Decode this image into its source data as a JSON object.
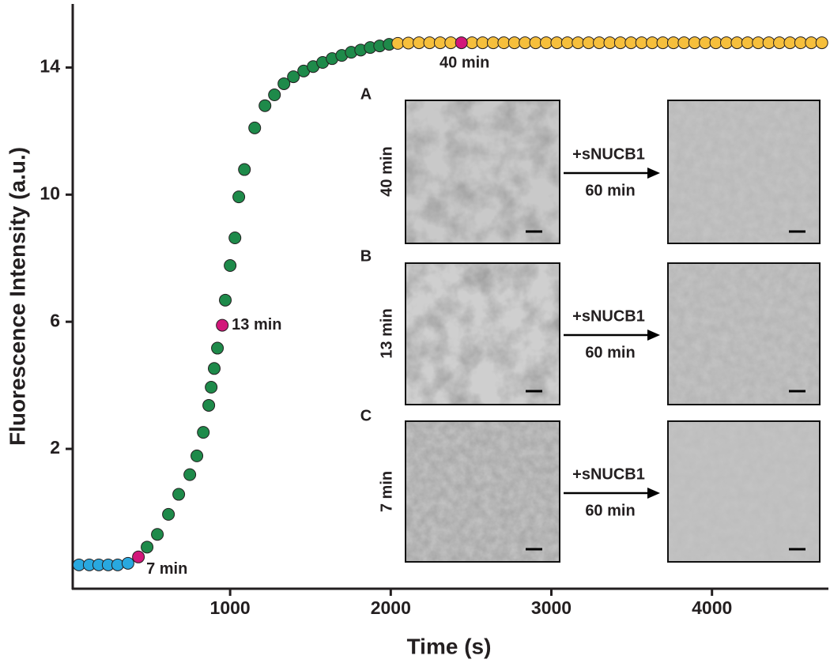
{
  "chart_data": {
    "type": "scatter",
    "x_label": "Time (s)",
    "y_label": "Fluorescence Intensity (a.u.)",
    "xlim": [
      20,
      4720
    ],
    "ylim": [
      -2.4,
      16
    ],
    "xticks": [
      1000,
      2000,
      3000,
      4000
    ],
    "yticks": [
      2,
      6,
      10,
      14
    ],
    "series": [
      {
        "color": "#29a8df",
        "x": [
          59,
          123,
          182,
          241,
          300,
          364
        ],
        "values": [
          -1.65,
          -1.65,
          -1.65,
          -1.65,
          -1.65,
          -1.6
        ]
      },
      {
        "color": "#1e8a4a",
        "x": [
          483,
          547,
          616,
          680,
          749,
          793,
          833,
          867,
          882,
          901,
          921,
          970,
          1000,
          1030,
          1054,
          1089,
          1153,
          1217,
          1276,
          1335,
          1394,
          1458,
          1517,
          1576,
          1635,
          1695,
          1754,
          1813,
          1872,
          1931,
          1990
        ],
        "values": [
          -1.09,
          -0.69,
          -0.06,
          0.57,
          1.19,
          1.78,
          2.52,
          3.37,
          3.94,
          4.53,
          5.17,
          6.68,
          7.77,
          8.64,
          9.93,
          10.79,
          12.1,
          12.8,
          13.14,
          13.49,
          13.71,
          13.89,
          14.03,
          14.16,
          14.28,
          14.38,
          14.48,
          14.55,
          14.63,
          14.68,
          14.73
        ]
      },
      {
        "color": "#f6bf3c",
        "x": [
          2044,
          2110,
          2176,
          2242,
          2308,
          2374,
          2506,
          2572,
          2638,
          2704,
          2770,
          2836,
          2902,
          2968,
          3034,
          3100,
          3166,
          3232,
          3298,
          3364,
          3430,
          3496,
          3562,
          3628,
          3694,
          3760,
          3826,
          3892,
          3958,
          4024,
          4090,
          4156,
          4222,
          4288,
          4354,
          4420,
          4486,
          4552,
          4618,
          4684
        ],
        "values": [
          14.76,
          14.77,
          14.78,
          14.78,
          14.78,
          14.78,
          14.78,
          14.78,
          14.78,
          14.78,
          14.78,
          14.78,
          14.78,
          14.78,
          14.78,
          14.78,
          14.78,
          14.78,
          14.78,
          14.78,
          14.78,
          14.78,
          14.78,
          14.78,
          14.78,
          14.78,
          14.78,
          14.78,
          14.78,
          14.78,
          14.78,
          14.78,
          14.78,
          14.78,
          14.78,
          14.78,
          14.78,
          14.78,
          14.78,
          14.78
        ]
      },
      {
        "color": "#d2177a",
        "x": [
          429,
          951,
          2440
        ],
        "values": [
          -1.4,
          5.89,
          14.78
        ]
      }
    ],
    "annotations": [
      "7 min",
      "13 min",
      "40 min"
    ],
    "insets": [
      {
        "label": "A",
        "time": "40 min",
        "treatment": "+sNUCB1",
        "duration": "60 min"
      },
      {
        "label": "B",
        "time": "13 min",
        "treatment": "+sNUCB1",
        "duration": "60 min"
      },
      {
        "label": "C",
        "time": "7 min",
        "treatment": "+sNUCB1",
        "duration": "60 min"
      }
    ]
  }
}
